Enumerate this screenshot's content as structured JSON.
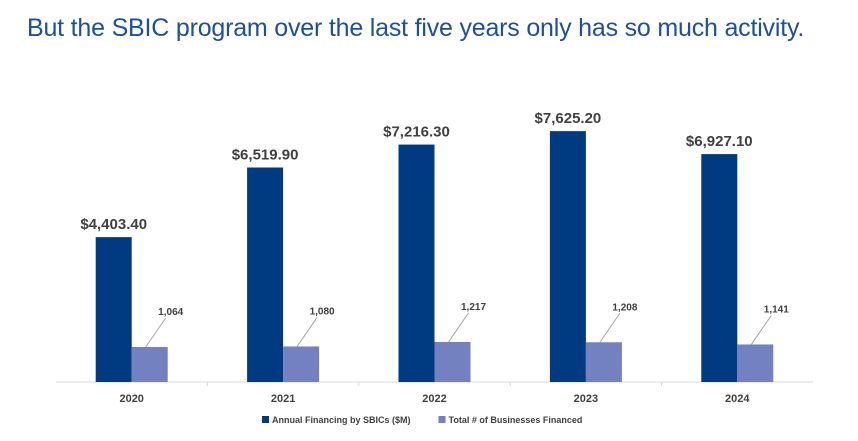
{
  "chart_data": {
    "type": "bar",
    "title": "But the SBIC program over the last five years only has so much activity.",
    "categories": [
      "2020",
      "2021",
      "2022",
      "2023",
      "2024"
    ],
    "series": [
      {
        "name": "Annual Financing by SBICs ($M)",
        "color": "#003a80",
        "values": [
          4403.4,
          6519.9,
          7216.3,
          7625.2,
          6927.1
        ],
        "labels": [
          "$4,403.40",
          "$6,519.90",
          "$7,216.30",
          "$7,625.20",
          "$6,927.10"
        ]
      },
      {
        "name": "Total # of Businesses Financed",
        "color": "#7381c0",
        "values": [
          1064,
          1080,
          1217,
          1208,
          1141
        ],
        "labels": [
          "1,064",
          "1,080",
          "1,217",
          "1,208",
          "1,141"
        ]
      }
    ],
    "xlabel": "",
    "ylabel": "",
    "ylim": [
      0,
      8000
    ],
    "grid": false,
    "legend": "bottom"
  }
}
